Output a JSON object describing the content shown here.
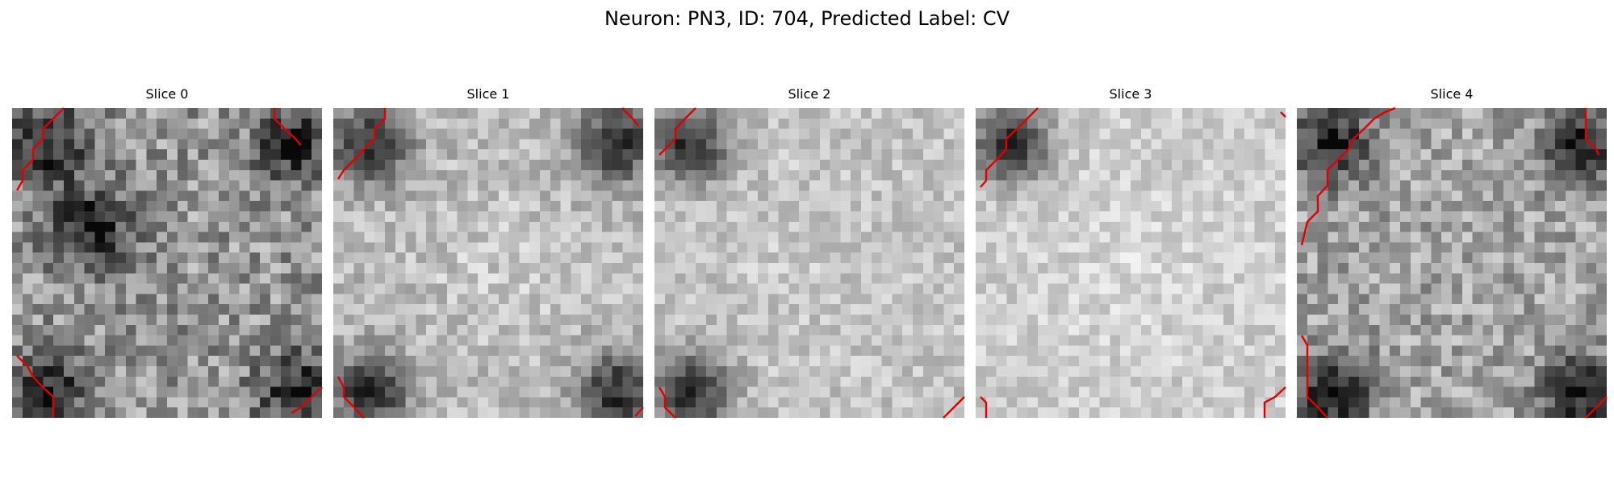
{
  "figure": {
    "suptitle": "Neuron: PN3, ID: 704, Predicted Label: CV",
    "colormap": "gray",
    "contour_color": "#e00000"
  },
  "slices": [
    {
      "title": "Slice 0",
      "dark_regions": [
        "top-left",
        "center-left",
        "bottom-left",
        "bottom-right",
        "top-right"
      ],
      "contours": [
        "top-left",
        "top-right",
        "bottom-left",
        "bottom-right"
      ]
    },
    {
      "title": "Slice 1",
      "dark_regions": [
        "top-left",
        "top-right",
        "bottom-left",
        "bottom-right"
      ],
      "contours": [
        "top-left",
        "top-right",
        "bottom-left",
        "bottom-right"
      ]
    },
    {
      "title": "Slice 2",
      "dark_regions": [
        "top-left",
        "bottom-left"
      ],
      "contours": [
        "top-left",
        "bottom-left",
        "bottom-right"
      ]
    },
    {
      "title": "Slice 3",
      "dark_regions": [
        "top-left"
      ],
      "contours": [
        "top-left",
        "top-right",
        "bottom-left",
        "bottom-right"
      ]
    },
    {
      "title": "Slice 4",
      "dark_regions": [
        "top-left",
        "bottom-left",
        "bottom-right",
        "top-right"
      ],
      "contours": [
        "top-left",
        "right",
        "bottom-left",
        "bottom-right"
      ]
    }
  ]
}
